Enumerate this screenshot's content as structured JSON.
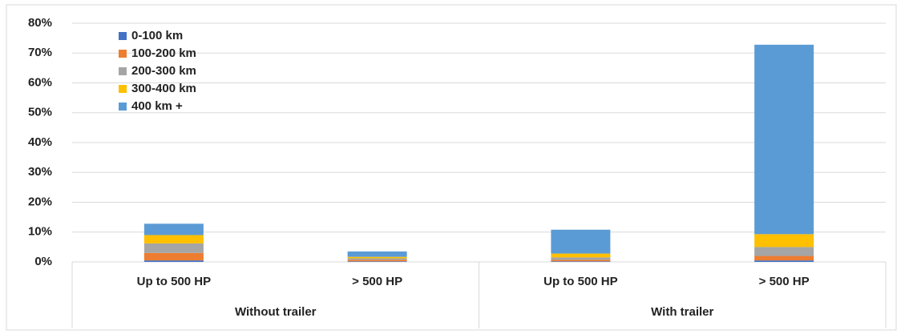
{
  "chart_data": {
    "type": "stacked_bar",
    "categories": [
      "Up to 500 HP",
      "> 500 HP",
      "Up to 500 HP",
      "> 500 HP"
    ],
    "groups": [
      "Without trailer",
      "With trailer"
    ],
    "series": [
      {
        "name": "0-100 km",
        "color": "#4472c4",
        "values": [
          0.5,
          0.2,
          0.2,
          0.5
        ]
      },
      {
        "name": "100-200 km",
        "color": "#ed7d31",
        "values": [
          2.5,
          0.5,
          0.5,
          1.5
        ]
      },
      {
        "name": "200-300 km",
        "color": "#a5a5a5",
        "values": [
          3.2,
          0.5,
          0.8,
          3.0
        ]
      },
      {
        "name": "300-400 km",
        "color": "#ffc000",
        "values": [
          2.8,
          0.5,
          1.3,
          4.3
        ]
      },
      {
        "name": "400 km +",
        "color": "#5b9bd5",
        "values": [
          3.8,
          1.8,
          8.0,
          63.5
        ]
      }
    ],
    "ylim": [
      0,
      80
    ],
    "yticks": [
      {
        "value": 0,
        "label": "0%"
      },
      {
        "value": 10,
        "label": "10%"
      },
      {
        "value": 20,
        "label": "20%"
      },
      {
        "value": 30,
        "label": "30%"
      },
      {
        "value": 40,
        "label": "40%"
      },
      {
        "value": 50,
        "label": "50%"
      },
      {
        "value": 60,
        "label": "60%"
      },
      {
        "value": 70,
        "label": "70%"
      },
      {
        "value": 80,
        "label": "80%"
      }
    ],
    "grid": true,
    "legend": "top-left"
  }
}
